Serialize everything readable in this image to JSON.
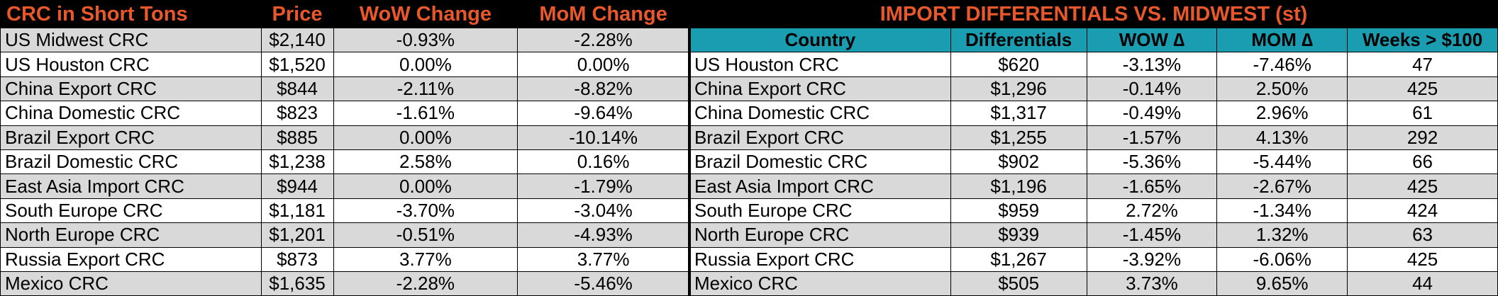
{
  "left": {
    "headers": [
      "CRC in Short Tons",
      "Price",
      "WoW Change",
      "MoM Change"
    ],
    "rows": [
      [
        "US Midwest CRC",
        "$2,140",
        "-0.93%",
        "-2.28%"
      ],
      [
        "US Houston CRC",
        "$1,520",
        "0.00%",
        "0.00%"
      ],
      [
        "China Export CRC",
        "$844",
        "-2.11%",
        "-8.82%"
      ],
      [
        "China Domestic CRC",
        "$823",
        "-1.61%",
        "-9.64%"
      ],
      [
        "Brazil Export CRC",
        "$885",
        "0.00%",
        "-10.14%"
      ],
      [
        "Brazil Domestic CRC",
        "$1,238",
        "2.58%",
        "0.16%"
      ],
      [
        "East Asia Import CRC",
        "$944",
        "0.00%",
        "-1.79%"
      ],
      [
        "South Europe CRC",
        "$1,181",
        "-3.70%",
        "-3.04%"
      ],
      [
        "North Europe CRC",
        "$1,201",
        "-0.51%",
        "-4.93%"
      ],
      [
        "Russia Export CRC",
        "$873",
        "3.77%",
        "3.77%"
      ],
      [
        "Mexico CRC",
        "$1,635",
        "-2.28%",
        "-5.46%"
      ]
    ]
  },
  "right": {
    "title": "IMPORT DIFFERENTIALS VS. MIDWEST (st)",
    "headers": [
      "Country",
      "Differentials",
      "WOW ∆",
      "MOM ∆",
      "Weeks > $100"
    ],
    "rows": [
      [
        "US Houston CRC",
        "$620",
        "-3.13%",
        "-7.46%",
        "47"
      ],
      [
        "China Export CRC",
        "$1,296",
        "-0.14%",
        "2.50%",
        "425"
      ],
      [
        "China Domestic CRC",
        "$1,317",
        "-0.49%",
        "2.96%",
        "61"
      ],
      [
        "Brazil Export CRC",
        "$1,255",
        "-1.57%",
        "4.13%",
        "292"
      ],
      [
        "Brazil Domestic CRC",
        "$902",
        "-5.36%",
        "-5.44%",
        "66"
      ],
      [
        "East Asia Import CRC",
        "$1,196",
        "-1.65%",
        "-2.67%",
        "425"
      ],
      [
        "South Europe CRC",
        "$959",
        "2.72%",
        "-1.34%",
        "424"
      ],
      [
        "North Europe CRC",
        "$939",
        "-1.45%",
        "1.32%",
        "63"
      ],
      [
        "Russia Export CRC",
        "$1,267",
        "-3.92%",
        "-6.06%",
        "425"
      ],
      [
        "Mexico CRC",
        "$505",
        "3.73%",
        "9.65%",
        "44"
      ]
    ]
  },
  "colors": {
    "header_bg": "#000000",
    "header_text": "#e8582a",
    "teal_header": "#1a9cb1",
    "alt_row": "#d9d9d9"
  }
}
